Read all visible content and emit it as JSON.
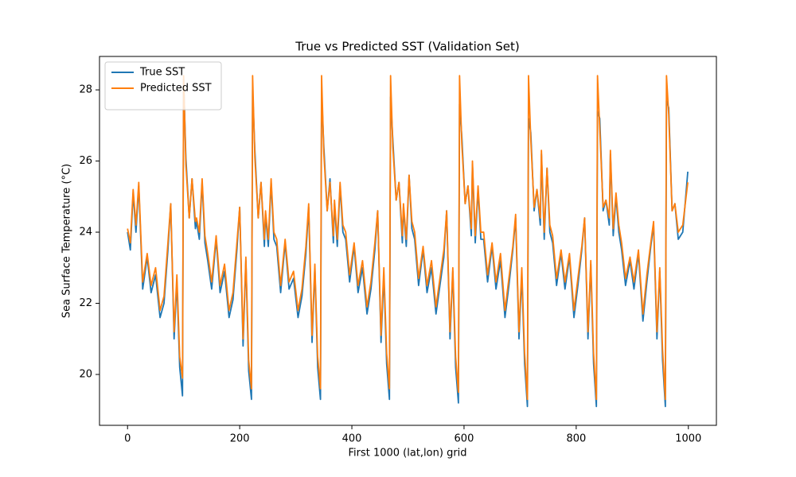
{
  "chart_data": {
    "type": "line",
    "title": "True vs Predicted SST (Validation Set)",
    "x_label": "First 1000 (lat,lon) grid",
    "y_label": "Sea Surface Temperature (°C)",
    "x": [
      0,
      5,
      10,
      15,
      20,
      27,
      35,
      42,
      50,
      58,
      65,
      72,
      77,
      83,
      88,
      93,
      98,
      100,
      104,
      110,
      115,
      121,
      123,
      128,
      133,
      138,
      143,
      150,
      158,
      165,
      173,
      181,
      188,
      195,
      200,
      206,
      211,
      216,
      221,
      223,
      227,
      233,
      238,
      244,
      246,
      251,
      256,
      261,
      266,
      273,
      281,
      288,
      296,
      304,
      311,
      318,
      323,
      329,
      334,
      339,
      344,
      346,
      350,
      356,
      361,
      367,
      369,
      374,
      379,
      384,
      389,
      396,
      404,
      411,
      419,
      427,
      434,
      441,
      446,
      452,
      457,
      462,
      467,
      469,
      473,
      479,
      484,
      490,
      492,
      497,
      502,
      507,
      512,
      519,
      527,
      534,
      542,
      550,
      557,
      564,
      569,
      575,
      580,
      585,
      590,
      592,
      596,
      602,
      607,
      613,
      615,
      620,
      625,
      630,
      635,
      642,
      650,
      657,
      665,
      673,
      680,
      687,
      692,
      698,
      703,
      708,
      713,
      715,
      719,
      725,
      730,
      736,
      738,
      743,
      748,
      753,
      758,
      765,
      773,
      780,
      788,
      796,
      803,
      810,
      815,
      821,
      826,
      831,
      836,
      838,
      842,
      848,
      853,
      859,
      861,
      866,
      871,
      876,
      881,
      888,
      896,
      903,
      911,
      919,
      926,
      933,
      938,
      944,
      949,
      954,
      959,
      961,
      965,
      971,
      976,
      982,
      990,
      999
    ],
    "series": [
      {
        "name": "True SST",
        "color": "#1f77b4",
        "values": [
          24.0,
          23.5,
          25.1,
          24.0,
          25.3,
          22.4,
          23.3,
          22.3,
          22.8,
          21.6,
          22.0,
          23.5,
          24.8,
          21.0,
          22.6,
          20.2,
          19.4,
          28.3,
          26.1,
          24.4,
          25.5,
          24.1,
          24.3,
          23.8,
          25.4,
          23.7,
          23.2,
          22.4,
          23.8,
          22.3,
          22.9,
          21.6,
          22.1,
          23.5,
          24.7,
          20.8,
          23.2,
          20.1,
          19.3,
          28.0,
          26.3,
          24.4,
          25.4,
          23.6,
          24.5,
          23.6,
          25.4,
          23.8,
          23.6,
          22.3,
          23.7,
          22.4,
          22.7,
          21.6,
          22.2,
          23.4,
          24.7,
          20.9,
          23.0,
          20.2,
          19.3,
          27.9,
          26.4,
          24.6,
          25.5,
          23.7,
          24.8,
          23.6,
          25.3,
          24.0,
          23.8,
          22.6,
          23.6,
          22.3,
          23.0,
          21.7,
          22.4,
          23.5,
          24.6,
          20.9,
          22.8,
          20.3,
          19.3,
          27.8,
          26.6,
          24.9,
          25.4,
          23.7,
          24.7,
          23.6,
          25.6,
          24.1,
          23.8,
          22.5,
          23.5,
          22.3,
          23.0,
          21.7,
          22.5,
          23.3,
          24.6,
          21.0,
          22.9,
          20.2,
          19.2,
          27.6,
          26.7,
          24.8,
          25.3,
          23.9,
          25.9,
          23.7,
          25.2,
          23.8,
          23.8,
          22.6,
          23.6,
          22.4,
          23.2,
          21.6,
          22.5,
          23.5,
          24.4,
          21.0,
          22.8,
          20.3,
          19.1,
          27.2,
          26.8,
          24.6,
          25.2,
          24.2,
          26.2,
          23.8,
          25.8,
          24.0,
          23.7,
          22.5,
          23.4,
          22.4,
          23.3,
          21.6,
          22.5,
          23.5,
          24.4,
          21.0,
          23.1,
          20.3,
          19.1,
          27.4,
          27.2,
          24.6,
          24.9,
          24.2,
          26.2,
          23.9,
          25.0,
          24.0,
          23.5,
          22.5,
          23.2,
          22.4,
          23.4,
          21.5,
          22.6,
          23.6,
          24.2,
          21.0,
          22.9,
          20.4,
          19.1,
          27.7,
          27.5,
          24.6,
          24.8,
          23.8,
          24.0,
          25.7
        ]
      },
      {
        "name": "Predicted SST",
        "color": "#ff7f0e",
        "values": [
          24.1,
          23.7,
          25.2,
          24.2,
          25.4,
          22.6,
          23.4,
          22.5,
          23.0,
          21.8,
          22.2,
          23.7,
          24.8,
          21.2,
          22.8,
          20.5,
          19.9,
          28.4,
          25.9,
          24.4,
          25.5,
          24.3,
          24.4,
          24.0,
          25.5,
          23.9,
          23.4,
          22.6,
          23.9,
          22.5,
          23.1,
          21.8,
          22.3,
          23.7,
          24.7,
          21.0,
          23.3,
          20.4,
          19.6,
          28.4,
          26.1,
          24.4,
          25.4,
          23.8,
          24.6,
          23.8,
          25.5,
          24.0,
          23.8,
          22.5,
          23.8,
          22.6,
          22.9,
          21.8,
          22.4,
          23.6,
          24.8,
          21.1,
          23.1,
          20.5,
          19.6,
          28.4,
          26.2,
          24.6,
          25.4,
          23.9,
          24.9,
          23.8,
          25.4,
          24.2,
          24.0,
          22.8,
          23.7,
          22.5,
          23.2,
          21.9,
          22.6,
          23.7,
          24.6,
          21.1,
          23.0,
          20.6,
          19.6,
          28.4,
          26.4,
          24.9,
          25.4,
          23.9,
          24.8,
          23.8,
          25.6,
          24.3,
          24.0,
          22.7,
          23.6,
          22.5,
          23.2,
          21.9,
          22.7,
          23.5,
          24.6,
          21.2,
          23.0,
          20.5,
          19.5,
          28.4,
          26.5,
          24.8,
          25.3,
          24.1,
          26.0,
          23.9,
          25.3,
          24.0,
          24.0,
          22.8,
          23.7,
          22.6,
          23.4,
          21.8,
          22.7,
          23.6,
          24.5,
          21.2,
          23.0,
          20.6,
          19.3,
          28.4,
          26.6,
          24.7,
          25.2,
          24.4,
          26.3,
          24.0,
          25.8,
          24.2,
          23.9,
          22.7,
          23.5,
          22.6,
          23.4,
          21.8,
          22.7,
          23.6,
          24.4,
          21.2,
          23.2,
          20.6,
          19.3,
          28.4,
          26.9,
          24.7,
          24.9,
          24.4,
          26.3,
          24.1,
          25.1,
          24.2,
          23.7,
          22.7,
          23.3,
          22.6,
          23.5,
          21.7,
          22.8,
          23.7,
          24.3,
          21.2,
          23.0,
          20.7,
          19.3,
          28.4,
          27.3,
          24.6,
          24.8,
          24.0,
          24.2,
          25.4
        ]
      }
    ],
    "xlim": [
      -50,
      1050
    ],
    "xticks": [
      0,
      200,
      400,
      600,
      800,
      1000
    ],
    "ylim": [
      18.57,
      28.94
    ],
    "yticks": [
      20,
      22,
      24,
      26,
      28
    ],
    "legend": "upper left"
  }
}
